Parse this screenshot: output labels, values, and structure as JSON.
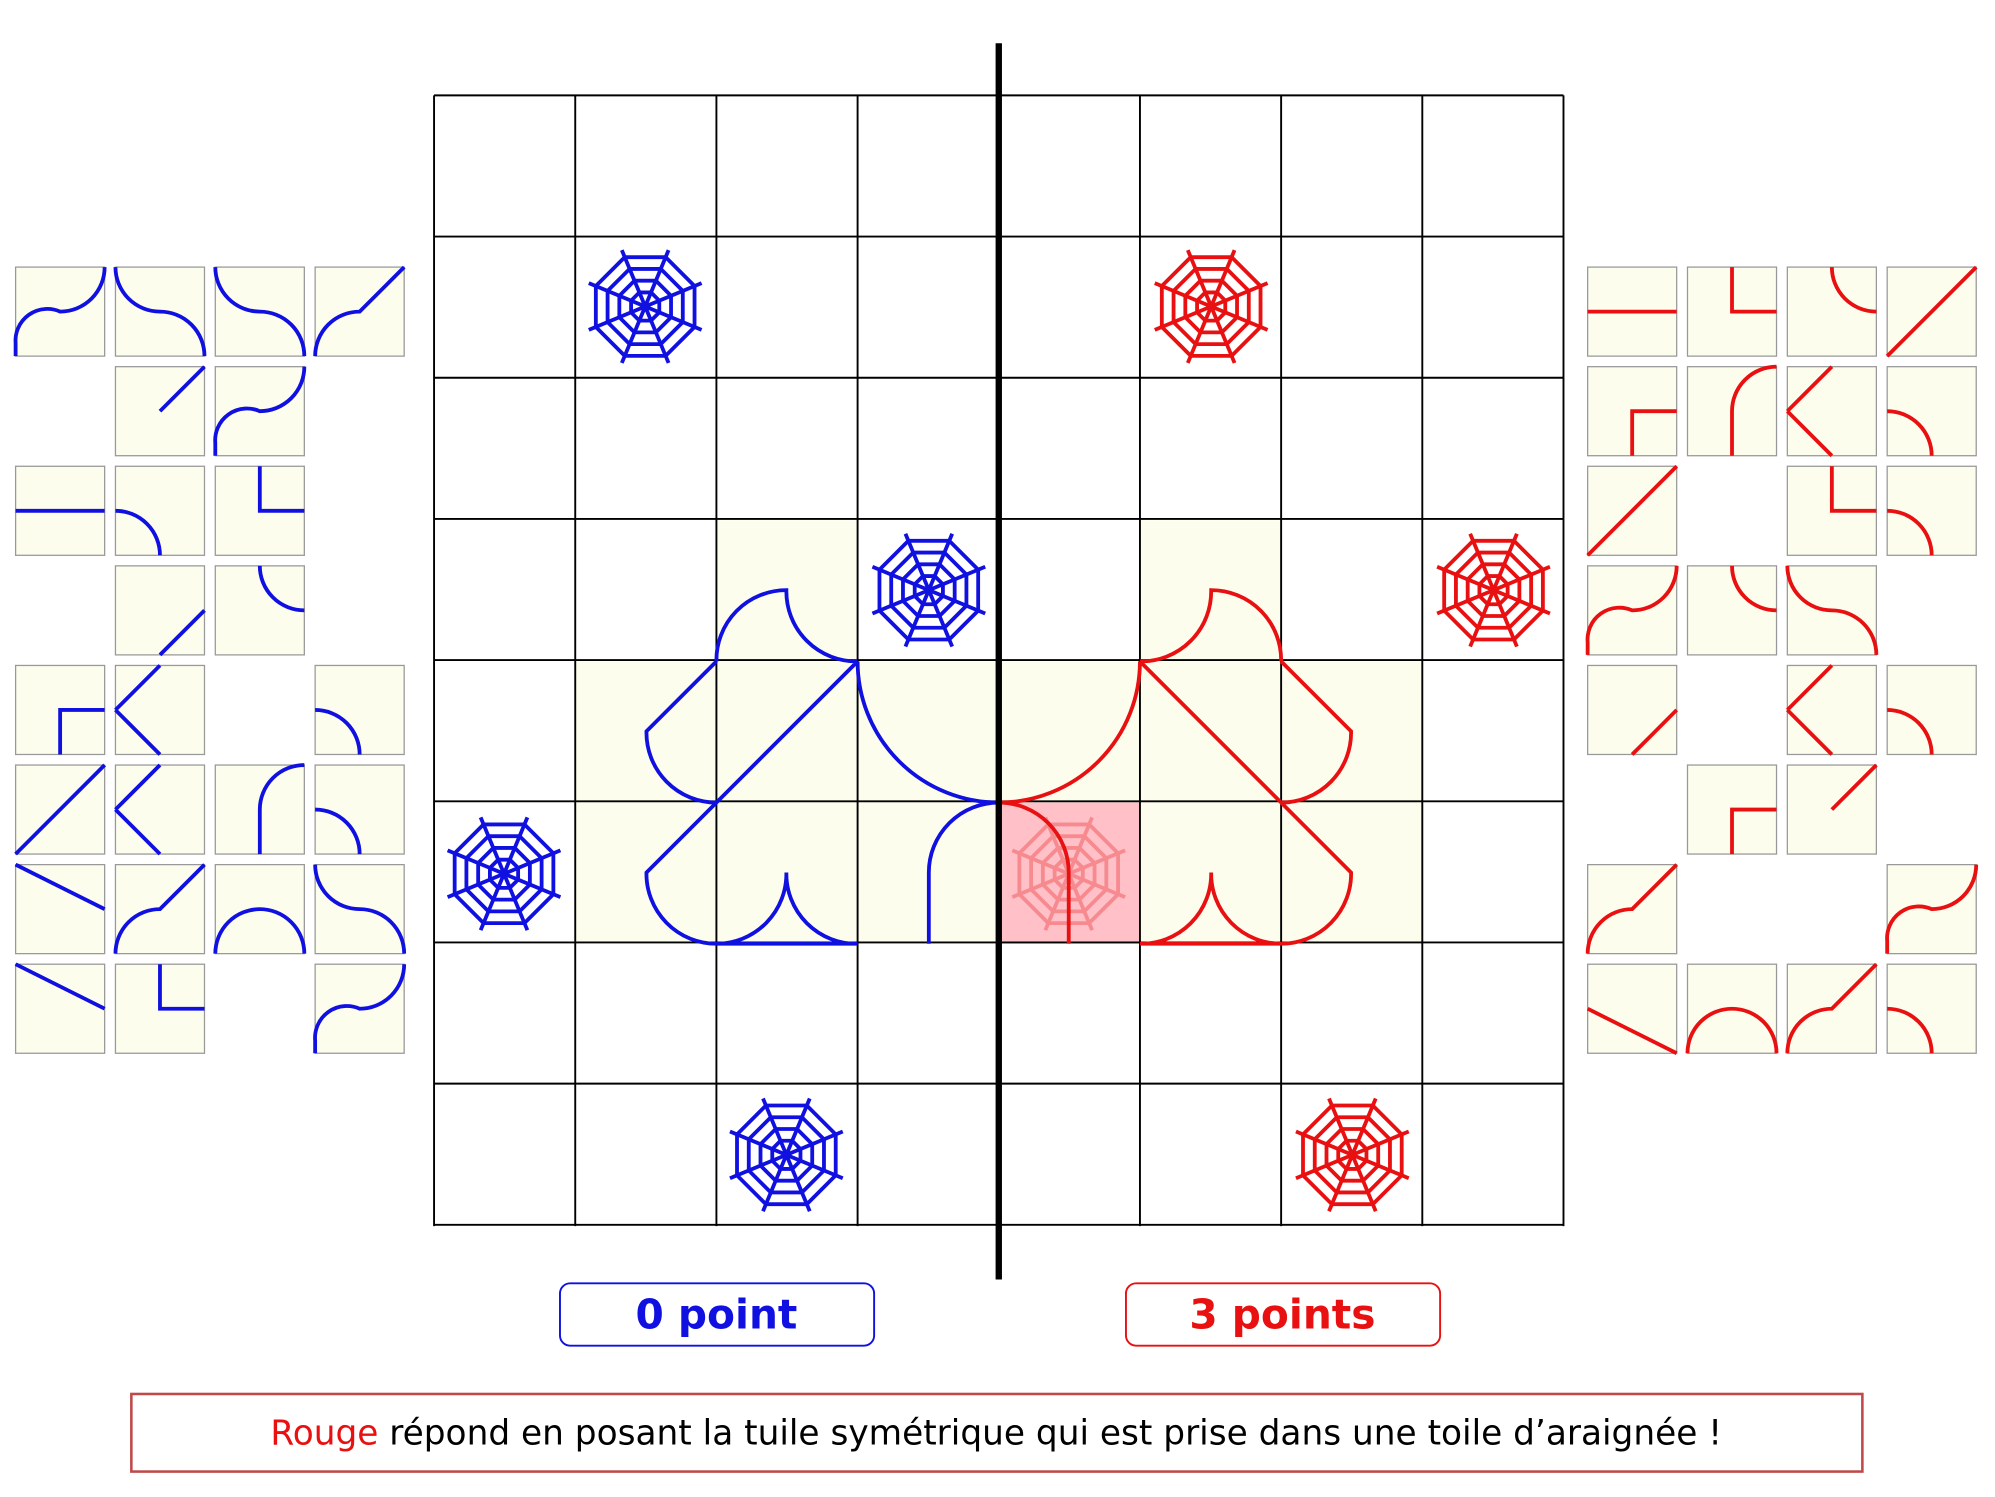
{
  "scores": {
    "blue": "0 point",
    "red": "3 points"
  },
  "message": {
    "player": "Rouge",
    "text": " répond en posant la tuile symétrique qui est prise dans une toile d’araignée !"
  }
}
